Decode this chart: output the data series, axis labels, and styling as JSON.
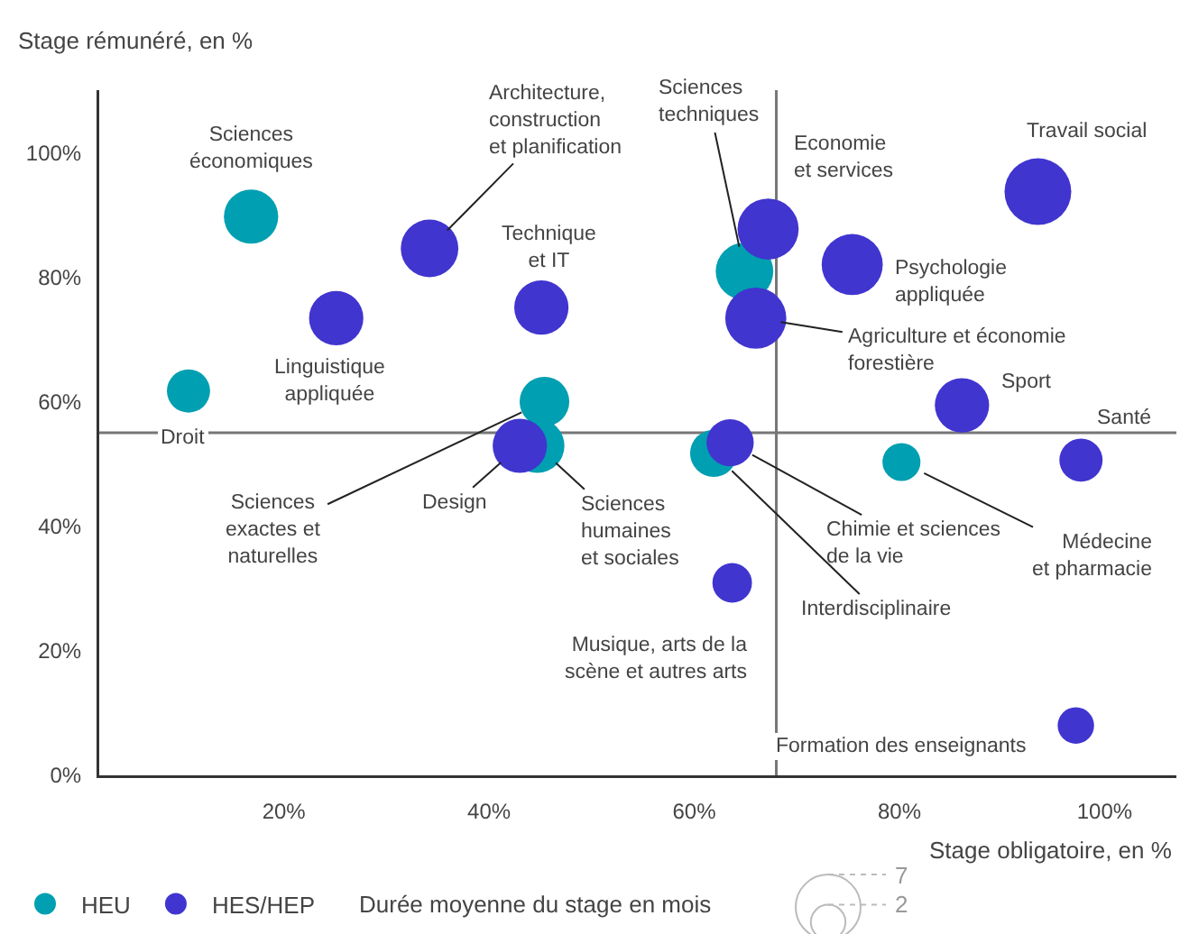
{
  "chart_data": {
    "type": "bubble",
    "xlabel": "Stage obligatoire, en %",
    "ylabel": "Stage rémunéré, en %",
    "xlim": [
      2,
      107
    ],
    "ylim": [
      0,
      110
    ],
    "xticks": [
      {
        "value": 20,
        "label": "20%"
      },
      {
        "value": 40,
        "label": "40%"
      },
      {
        "value": 60,
        "label": "60%"
      },
      {
        "value": 80,
        "label": "80%"
      },
      {
        "value": 100,
        "label": "100%"
      }
    ],
    "yticks": [
      {
        "value": 0,
        "label": "0%"
      },
      {
        "value": 20,
        "label": "20%"
      },
      {
        "value": 40,
        "label": "40%"
      },
      {
        "value": 60,
        "label": "60%"
      },
      {
        "value": 80,
        "label": "80%"
      },
      {
        "value": 100,
        "label": "100%"
      }
    ],
    "series": [
      {
        "name": "HEU",
        "color": "#009fb1",
        "x": [
          16.8,
          10.7,
          45.4,
          44.7,
          64.9,
          61.9,
          80.2
        ],
        "values": [
          89.7,
          61.7,
          60,
          52.9,
          80.9,
          51.7,
          50.3
        ],
        "sizes": [
          4.9,
          3.1,
          4.1,
          4.9,
          5.5,
          3.7,
          2.4
        ]
      },
      {
        "name": "HES/HEP",
        "color": "#4035cf",
        "x": [
          34.2,
          25.1,
          45.1,
          43,
          67.2,
          75.4,
          66,
          93.5,
          86.1,
          97.7,
          63.5,
          63.7,
          97.2
        ],
        "values": [
          84.6,
          73.4,
          75.1,
          52.9,
          87.7,
          82,
          73.4,
          93.7,
          59.4,
          50.6,
          53.4,
          30.9,
          8
        ],
        "sizes": [
          5.5,
          4.9,
          4.9,
          4.9,
          6.2,
          6.2,
          6.2,
          7.4,
          4.9,
          3.1,
          3.7,
          2.6,
          2.2
        ]
      }
    ],
    "size_legend": [
      7,
      2
    ],
    "marker": "circle",
    "legend": "bottom left",
    "ref_lines": [
      {
        "axis": "x",
        "value": 68
      },
      {
        "axis": "y",
        "value": 55
      }
    ],
    "annotations": [
      {
        "text": "Sciences\néconomiques",
        "x": 16.8,
        "y": 89.7
      },
      {
        "text": "Droit",
        "x": 10.7,
        "y": 61.7
      },
      {
        "text": "Sciences\nexactes et\nnaturelles",
        "x": 45.4,
        "y": 60
      },
      {
        "text": "Design",
        "x": 43,
        "y": 52.9
      },
      {
        "text": "Sciences\nhumaines\net sociales",
        "x": 44.7,
        "y": 52.9
      },
      {
        "text": "Architecture,\nconstruction\net planification",
        "x": 34.2,
        "y": 84.6
      },
      {
        "text": "Linguistique\nappliquée",
        "x": 25.1,
        "y": 73.4
      },
      {
        "text": "Technique\net IT",
        "x": 45.1,
        "y": 75.1
      },
      {
        "text": "Sciences\ntechniques",
        "x": 64.9,
        "y": 80.9
      },
      {
        "text": "Economie\net services",
        "x": 67.2,
        "y": 87.7
      },
      {
        "text": "Psychologie\nappliquée",
        "x": 75.4,
        "y": 82
      },
      {
        "text": "Agriculture et économie\nforestière",
        "x": 66,
        "y": 73.4
      },
      {
        "text": "Travail social",
        "x": 93.5,
        "y": 93.7
      },
      {
        "text": "Sport",
        "x": 86.1,
        "y": 59.4
      },
      {
        "text": "Santé",
        "x": 97.7,
        "y": 50.6
      },
      {
        "text": "Chimie et sciences\nde la vie",
        "x": 63.5,
        "y": 53.4
      },
      {
        "text": "Interdisciplinaire",
        "x": 61.9,
        "y": 51.7
      },
      {
        "text": "Médecine\net pharmacie",
        "x": 80.2,
        "y": 50.3
      },
      {
        "text": "Musique, arts de la\nscène et autres arts",
        "x": 63.7,
        "y": 30.9
      },
      {
        "text": "Formation des enseignants",
        "x": 97.2,
        "y": 8
      },
      "Durée moyenne du stage en mois"
    ]
  }
}
